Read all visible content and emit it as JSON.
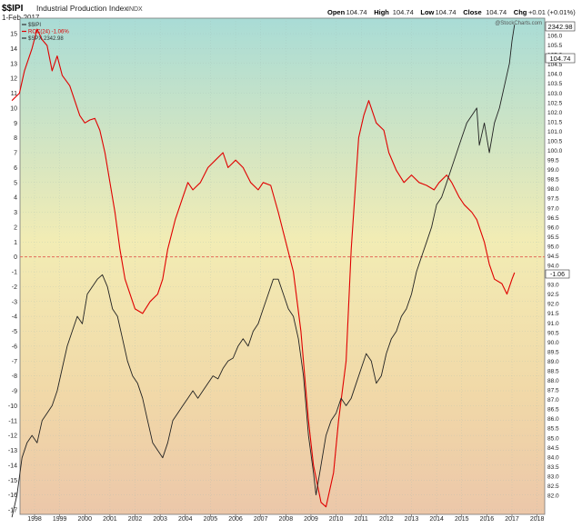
{
  "header": {
    "symbol": "$$IPI",
    "name": "Industrial Production Index",
    "exchange": "INDX",
    "date": "1-Feb-2017",
    "ohlc": [
      {
        "label": "Open",
        "value": "104.74"
      },
      {
        "label": "High",
        "value": "104.74"
      },
      {
        "label": "Low",
        "value": "104.74"
      },
      {
        "label": "Close",
        "value": "104.74"
      },
      {
        "label": "Chg",
        "value": "+0.01 (+0.01%)"
      }
    ],
    "watermark": "@StockCharts.com"
  },
  "legend": [
    {
      "label": "$$IPI",
      "color": "#333333"
    },
    {
      "label": "ROC(24) -1.06%",
      "color": "#e00000"
    },
    {
      "label": "$SPX 2342.98",
      "color": "#333333"
    }
  ],
  "badges": {
    "spx_last": "2342.98",
    "ipi_last": "104.74",
    "roc_last": "-1.06"
  },
  "chart_data": {
    "type": "line",
    "x_ticks": [
      "1998",
      "1999",
      "2000",
      "2001",
      "2002",
      "2003",
      "2004",
      "2005",
      "2006",
      "2007",
      "2008",
      "2009",
      "2010",
      "2011",
      "2012",
      "2013",
      "2014",
      "2015",
      "2016",
      "2017",
      "2018"
    ],
    "left_axis": {
      "ticks": [
        15,
        14,
        13,
        12,
        11,
        10,
        9,
        8,
        7,
        6,
        5,
        4,
        3,
        2,
        1,
        0,
        -1,
        -2,
        -3,
        -4,
        -5,
        -6,
        -7,
        -8,
        -9,
        -10,
        -11,
        -12,
        -13,
        -14,
        -15,
        -16,
        -17
      ],
      "range": [
        -17,
        15.6
      ]
    },
    "right_axis": {
      "ticks": [
        106.0,
        105.5,
        105.0,
        104.5,
        104.0,
        103.5,
        103.0,
        102.5,
        102.0,
        101.5,
        101.0,
        100.5,
        100.0,
        99.5,
        99.0,
        98.5,
        98.0,
        97.5,
        97.0,
        96.5,
        96.0,
        95.5,
        95.0,
        94.5,
        94.0,
        93.5,
        93.0,
        92.5,
        92.0,
        91.5,
        91.0,
        90.5,
        90.0,
        89.5,
        89.0,
        88.5,
        88.0,
        87.5,
        87.0,
        86.5,
        86.0,
        85.5,
        85.0,
        84.5,
        84.0,
        83.5,
        83.0,
        82.5,
        82.0
      ],
      "range": [
        81.6,
        106.4
      ]
    },
    "zero_line": 0,
    "background": "gradient teal (top) to yellow to peach (bottom)",
    "series": [
      {
        "name": "ROC(24)",
        "axis": "left",
        "color": "#e00000",
        "points": [
          [
            1997.1,
            10.5
          ],
          [
            1997.4,
            11.0
          ],
          [
            1997.6,
            12.5
          ],
          [
            1997.9,
            14.0
          ],
          [
            1998.1,
            15.3
          ],
          [
            1998.3,
            14.6
          ],
          [
            1998.5,
            14.2
          ],
          [
            1998.7,
            12.5
          ],
          [
            1998.9,
            13.5
          ],
          [
            1999.1,
            12.2
          ],
          [
            1999.4,
            11.5
          ],
          [
            1999.6,
            10.5
          ],
          [
            1999.8,
            9.5
          ],
          [
            2000.0,
            9.0
          ],
          [
            2000.2,
            9.2
          ],
          [
            2000.4,
            9.3
          ],
          [
            2000.6,
            8.5
          ],
          [
            2000.8,
            7.0
          ],
          [
            2001.0,
            5.0
          ],
          [
            2001.2,
            3.0
          ],
          [
            2001.4,
            0.5
          ],
          [
            2001.6,
            -1.5
          ],
          [
            2001.8,
            -2.5
          ],
          [
            2002.0,
            -3.5
          ],
          [
            2002.3,
            -3.8
          ],
          [
            2002.6,
            -3.0
          ],
          [
            2002.9,
            -2.5
          ],
          [
            2003.1,
            -1.5
          ],
          [
            2003.3,
            0.5
          ],
          [
            2003.6,
            2.5
          ],
          [
            2003.9,
            4.0
          ],
          [
            2004.1,
            5.0
          ],
          [
            2004.3,
            4.5
          ],
          [
            2004.6,
            5.0
          ],
          [
            2004.9,
            6.0
          ],
          [
            2005.2,
            6.5
          ],
          [
            2005.5,
            7.0
          ],
          [
            2005.7,
            6.0
          ],
          [
            2006.0,
            6.5
          ],
          [
            2006.3,
            6.0
          ],
          [
            2006.6,
            5.0
          ],
          [
            2006.9,
            4.5
          ],
          [
            2007.1,
            5.0
          ],
          [
            2007.4,
            4.8
          ],
          [
            2007.7,
            3.0
          ],
          [
            2008.0,
            1.0
          ],
          [
            2008.3,
            -1.0
          ],
          [
            2008.6,
            -5.0
          ],
          [
            2008.9,
            -11.0
          ],
          [
            2009.1,
            -14.0
          ],
          [
            2009.4,
            -16.5
          ],
          [
            2009.6,
            -16.8
          ],
          [
            2009.9,
            -14.5
          ],
          [
            2010.1,
            -11.0
          ],
          [
            2010.4,
            -7.0
          ],
          [
            2010.6,
            0.5
          ],
          [
            2010.9,
            8.0
          ],
          [
            2011.1,
            9.5
          ],
          [
            2011.3,
            10.5
          ],
          [
            2011.6,
            9.0
          ],
          [
            2011.9,
            8.5
          ],
          [
            2012.1,
            7.0
          ],
          [
            2012.4,
            5.8
          ],
          [
            2012.7,
            5.0
          ],
          [
            2013.0,
            5.5
          ],
          [
            2013.3,
            5.0
          ],
          [
            2013.6,
            4.8
          ],
          [
            2013.9,
            4.5
          ],
          [
            2014.1,
            5.0
          ],
          [
            2014.4,
            5.5
          ],
          [
            2014.6,
            5.0
          ],
          [
            2014.9,
            4.0
          ],
          [
            2015.1,
            3.5
          ],
          [
            2015.4,
            3.0
          ],
          [
            2015.6,
            2.5
          ],
          [
            2015.9,
            1.0
          ],
          [
            2016.1,
            -0.5
          ],
          [
            2016.3,
            -1.5
          ],
          [
            2016.6,
            -1.8
          ],
          [
            2016.8,
            -2.5
          ],
          [
            2017.0,
            -1.5
          ],
          [
            2017.1,
            -1.06
          ]
        ]
      },
      {
        "name": "$SPX",
        "axis": "left",
        "color": "#222222",
        "points": [
          [
            1997.1,
            -17.5
          ],
          [
            1997.3,
            -16.0
          ],
          [
            1997.5,
            -13.5
          ],
          [
            1997.7,
            -12.5
          ],
          [
            1997.9,
            -12.0
          ],
          [
            1998.1,
            -12.5
          ],
          [
            1998.3,
            -11.0
          ],
          [
            1998.5,
            -10.5
          ],
          [
            1998.7,
            -10.0
          ],
          [
            1998.9,
            -9.0
          ],
          [
            1999.1,
            -7.5
          ],
          [
            1999.3,
            -6.0
          ],
          [
            1999.5,
            -5.0
          ],
          [
            1999.7,
            -4.0
          ],
          [
            1999.9,
            -4.5
          ],
          [
            2000.1,
            -2.5
          ],
          [
            2000.3,
            -2.0
          ],
          [
            2000.5,
            -1.5
          ],
          [
            2000.7,
            -1.2
          ],
          [
            2000.9,
            -2.0
          ],
          [
            2001.1,
            -3.5
          ],
          [
            2001.3,
            -4.0
          ],
          [
            2001.5,
            -5.5
          ],
          [
            2001.7,
            -7.0
          ],
          [
            2001.9,
            -8.0
          ],
          [
            2002.1,
            -8.5
          ],
          [
            2002.3,
            -9.5
          ],
          [
            2002.5,
            -11.0
          ],
          [
            2002.7,
            -12.5
          ],
          [
            2002.9,
            -13.0
          ],
          [
            2003.1,
            -13.5
          ],
          [
            2003.3,
            -12.5
          ],
          [
            2003.5,
            -11.0
          ],
          [
            2003.7,
            -10.5
          ],
          [
            2003.9,
            -10.0
          ],
          [
            2004.1,
            -9.5
          ],
          [
            2004.3,
            -9.0
          ],
          [
            2004.5,
            -9.5
          ],
          [
            2004.7,
            -9.0
          ],
          [
            2004.9,
            -8.5
          ],
          [
            2005.1,
            -8.0
          ],
          [
            2005.3,
            -8.2
          ],
          [
            2005.5,
            -7.5
          ],
          [
            2005.7,
            -7.0
          ],
          [
            2005.9,
            -6.8
          ],
          [
            2006.1,
            -6.0
          ],
          [
            2006.3,
            -5.5
          ],
          [
            2006.5,
            -6.0
          ],
          [
            2006.7,
            -5.0
          ],
          [
            2006.9,
            -4.5
          ],
          [
            2007.1,
            -3.5
          ],
          [
            2007.3,
            -2.5
          ],
          [
            2007.5,
            -1.5
          ],
          [
            2007.7,
            -1.5
          ],
          [
            2007.9,
            -2.5
          ],
          [
            2008.1,
            -3.5
          ],
          [
            2008.3,
            -4.0
          ],
          [
            2008.5,
            -5.5
          ],
          [
            2008.7,
            -8.0
          ],
          [
            2008.9,
            -12.0
          ],
          [
            2009.1,
            -14.5
          ],
          [
            2009.2,
            -16.0
          ],
          [
            2009.4,
            -14.0
          ],
          [
            2009.6,
            -12.0
          ],
          [
            2009.8,
            -11.0
          ],
          [
            2010.0,
            -10.5
          ],
          [
            2010.2,
            -9.5
          ],
          [
            2010.4,
            -10.0
          ],
          [
            2010.6,
            -9.5
          ],
          [
            2010.8,
            -8.5
          ],
          [
            2011.0,
            -7.5
          ],
          [
            2011.2,
            -6.5
          ],
          [
            2011.4,
            -7.0
          ],
          [
            2011.6,
            -8.5
          ],
          [
            2011.8,
            -8.0
          ],
          [
            2012.0,
            -6.5
          ],
          [
            2012.2,
            -5.5
          ],
          [
            2012.4,
            -5.0
          ],
          [
            2012.6,
            -4.0
          ],
          [
            2012.8,
            -3.5
          ],
          [
            2013.0,
            -2.5
          ],
          [
            2013.2,
            -1.0
          ],
          [
            2013.4,
            0.0
          ],
          [
            2013.6,
            1.0
          ],
          [
            2013.8,
            2.0
          ],
          [
            2014.0,
            3.5
          ],
          [
            2014.2,
            4.0
          ],
          [
            2014.4,
            5.0
          ],
          [
            2014.6,
            6.0
          ],
          [
            2014.8,
            7.0
          ],
          [
            2015.0,
            8.0
          ],
          [
            2015.2,
            9.0
          ],
          [
            2015.4,
            9.5
          ],
          [
            2015.6,
            10.0
          ],
          [
            2015.7,
            7.5
          ],
          [
            2015.9,
            9.0
          ],
          [
            2016.1,
            7.0
          ],
          [
            2016.3,
            9.0
          ],
          [
            2016.5,
            10.0
          ],
          [
            2016.7,
            11.5
          ],
          [
            2016.9,
            13.0
          ],
          [
            2017.0,
            14.5
          ],
          [
            2017.1,
            15.6
          ]
        ]
      }
    ],
    "series_note": "ROC(24) and $SPX in the legend; $$IPI line not distinctly drawn"
  }
}
